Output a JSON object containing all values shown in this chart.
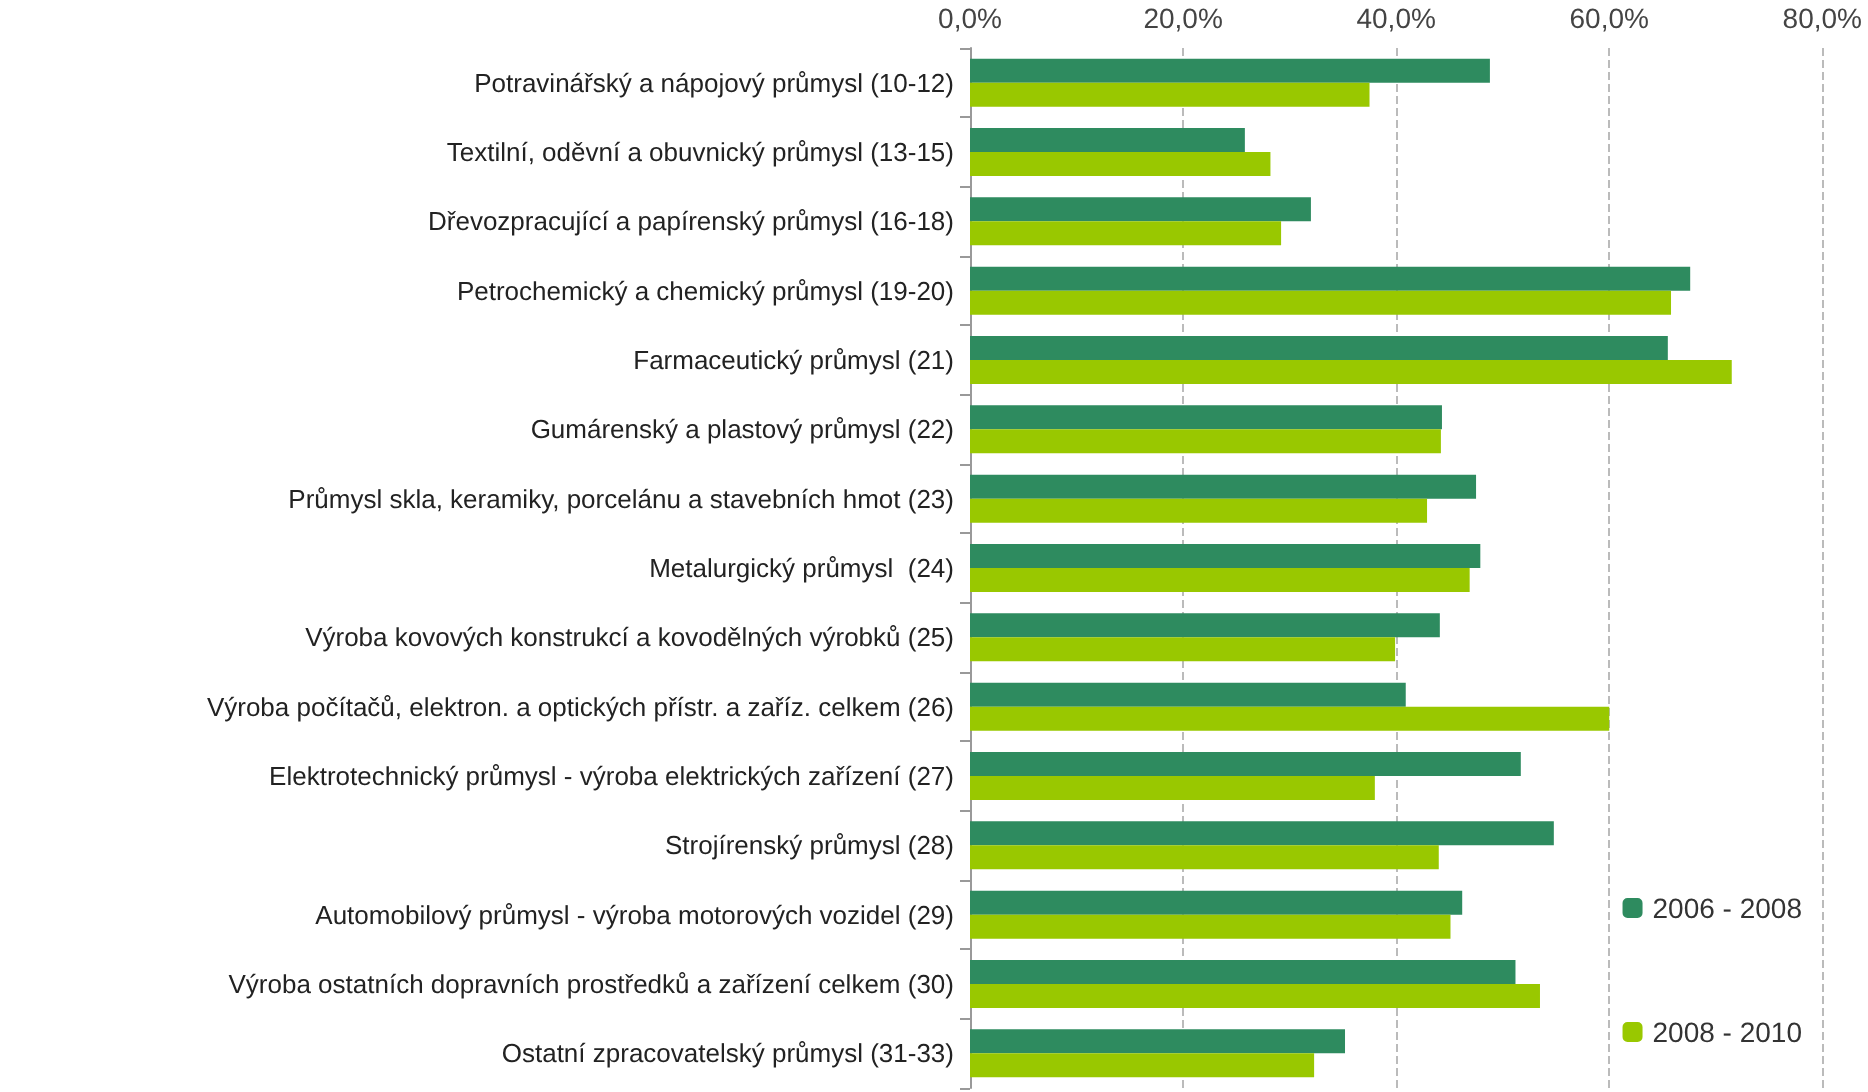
{
  "chart_data": {
    "type": "bar",
    "orientation": "horizontal",
    "categories": [
      "Potravinářský a nápojový průmysl (10-12)",
      "Textilní, oděvní a obuvnický průmysl (13-15)",
      "Dřevozpracující a papírenský průmysl (16-18)",
      "Petrochemický a chemický průmysl (19-20)",
      "Farmaceutický průmysl (21)",
      "Gumárenský a plastový průmysl (22)",
      "Průmysl skla, keramiky, porcelánu a stavebních hmot (23)",
      "Metalurgický průmysl  (24)",
      "Výroba kovových konstrukcí a kovodělných výrobků (25)",
      "Výroba počítačů, elektron. a optických přístr. a zaříz. celkem (26)",
      "Elektrotechnický průmysl - výroba elektrických zařízení (27)",
      "Strojírenský průmysl (28)",
      "Automobilový průmysl - výroba motorových vozidel (29)",
      "Výroba ostatních dopravních prostředků a zařízení celkem (30)",
      "Ostatní zpracovatelský průmysl (31-33)"
    ],
    "series": [
      {
        "name": "2006 - 2008",
        "color": "#2e8b5f",
        "values": [
          48.8,
          25.8,
          32.0,
          67.6,
          65.5,
          44.3,
          47.5,
          47.9,
          44.1,
          40.9,
          51.7,
          54.8,
          46.2,
          51.2,
          35.2
        ]
      },
      {
        "name": "2008 - 2010",
        "color": "#99c800",
        "values": [
          37.5,
          28.2,
          29.2,
          65.8,
          71.5,
          44.2,
          42.9,
          46.9,
          39.9,
          60.0,
          38.0,
          44.0,
          45.1,
          53.5,
          32.3
        ]
      }
    ],
    "xlim": [
      0,
      80
    ],
    "xticks": [
      {
        "value": 0,
        "label": "0,0%"
      },
      {
        "value": 20,
        "label": "20,0%"
      },
      {
        "value": 40,
        "label": "40,0%"
      },
      {
        "value": 60,
        "label": "60,0%"
      },
      {
        "value": 80,
        "label": "80,0%"
      }
    ],
    "grid": "x",
    "legend": "bottom right"
  }
}
